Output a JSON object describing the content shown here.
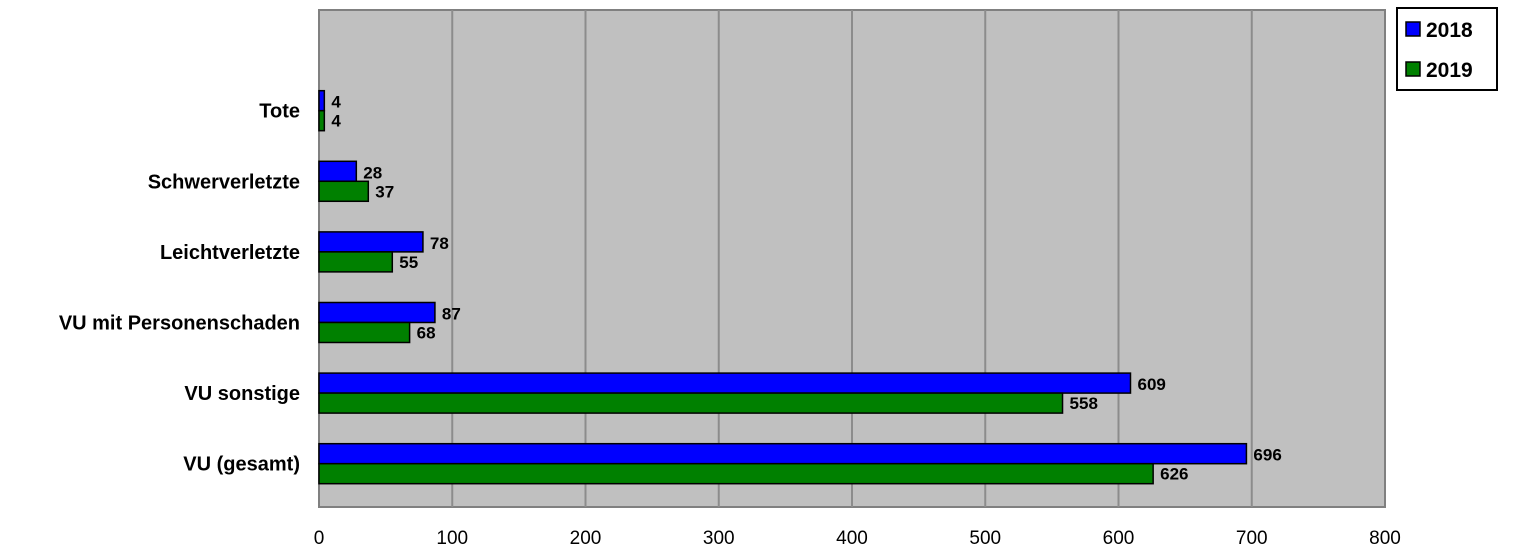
{
  "chart_data": {
    "type": "bar",
    "orientation": "horizontal",
    "categories": [
      "Tote",
      "Schwerverletzte",
      "Leichtverletzte",
      "VU mit Personenschaden",
      "VU sonstige",
      "VU (gesamt)"
    ],
    "series": [
      {
        "name": "2018",
        "values": [
          4,
          28,
          78,
          87,
          609,
          696
        ],
        "color": "#0000ff"
      },
      {
        "name": "2019",
        "values": [
          4,
          37,
          55,
          68,
          558,
          626
        ],
        "color": "#008000"
      }
    ],
    "xlim": [
      0,
      800
    ],
    "xticks": [
      0,
      100,
      200,
      300,
      400,
      500,
      600,
      700,
      800
    ],
    "grid": true,
    "legend": "top-right",
    "plot_background": "#c0c0c0"
  }
}
